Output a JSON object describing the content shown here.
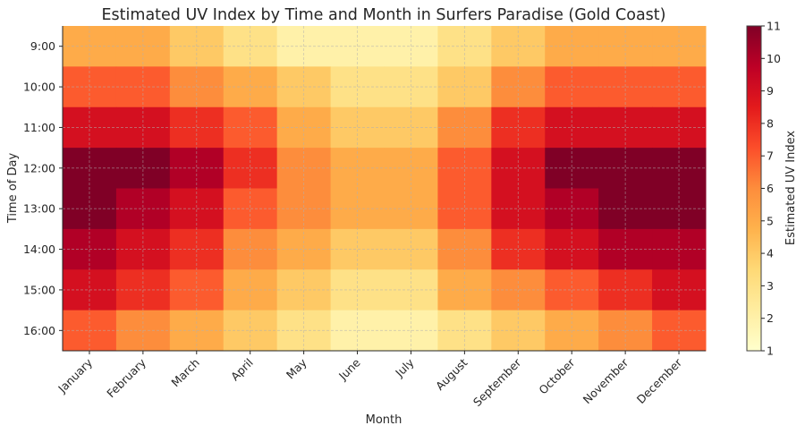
{
  "chart_data": {
    "type": "heatmap",
    "title": "Estimated UV Index by Time and Month in Surfers Paradise (Gold Coast)",
    "xlabel": "Month",
    "ylabel": "Time of Day",
    "x_categories": [
      "January",
      "February",
      "March",
      "April",
      "May",
      "June",
      "July",
      "August",
      "September",
      "October",
      "November",
      "December"
    ],
    "y_categories": [
      "9:00",
      "10:00",
      "11:00",
      "12:00",
      "13:00",
      "14:00",
      "15:00",
      "16:00"
    ],
    "values": [
      [
        5,
        5,
        4,
        3,
        2,
        2,
        2,
        3,
        4,
        5,
        5,
        5
      ],
      [
        7,
        7,
        6,
        5,
        4,
        3,
        3,
        4,
        6,
        7,
        7,
        7
      ],
      [
        9,
        9,
        8,
        7,
        5,
        4,
        4,
        6,
        8,
        9,
        9,
        9
      ],
      [
        11,
        11,
        10,
        8,
        6,
        5,
        5,
        7,
        9,
        11,
        11,
        11
      ],
      [
        11,
        10,
        9,
        7,
        6,
        5,
        5,
        7,
        9,
        10,
        11,
        11
      ],
      [
        10,
        9,
        8,
        6,
        5,
        4,
        4,
        6,
        8,
        9,
        10,
        10
      ],
      [
        9,
        8,
        7,
        5,
        4,
        3,
        3,
        5,
        6,
        7,
        8,
        9
      ],
      [
        7,
        6,
        5,
        4,
        3,
        2,
        2,
        3,
        4,
        5,
        6,
        7
      ]
    ],
    "colormap": "YlOrRd",
    "colorbar": {
      "label": "Estimated UV Index",
      "range": [
        1,
        11
      ],
      "ticks": [
        1,
        2,
        3,
        4,
        5,
        6,
        7,
        8,
        9,
        10,
        11
      ]
    },
    "grid": true
  }
}
